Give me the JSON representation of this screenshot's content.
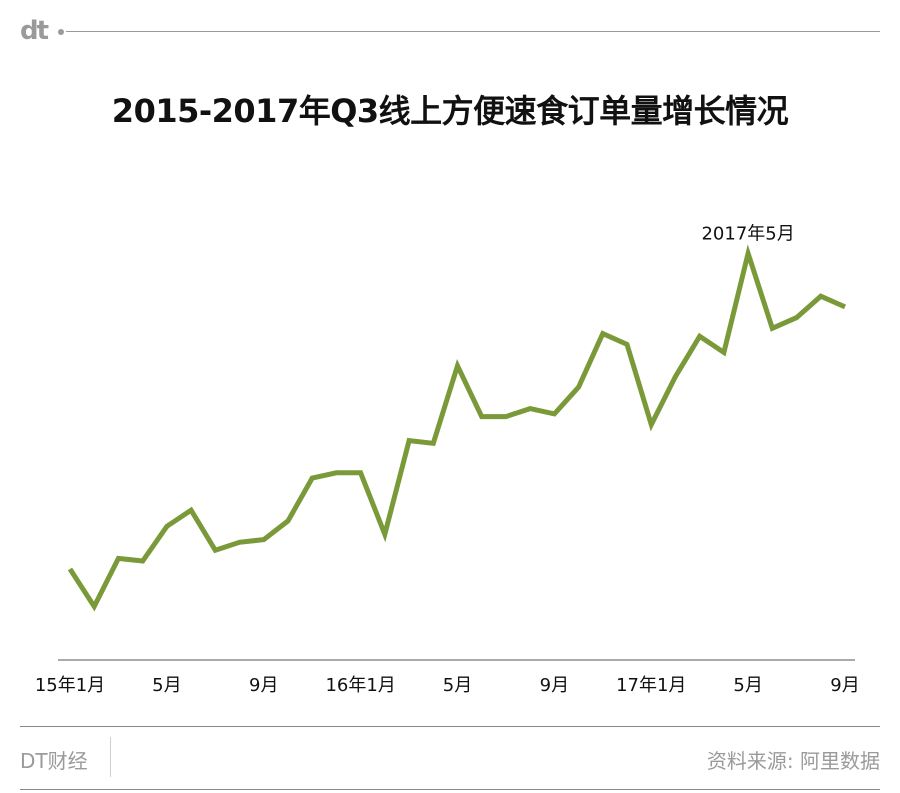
{
  "logo": {
    "text": "dt"
  },
  "title": "2015-2017年Q3线上方便速食订单量增长情况",
  "footer": {
    "brand": "DT财经",
    "source": "资料来源: 阿里数据"
  },
  "chart_data": {
    "type": "line",
    "title": "2015-2017年Q3线上方便速食订单量增长情况",
    "xlabel": "",
    "ylabel": "",
    "y_axis_shown": false,
    "grid": false,
    "ylim": [
      0,
      100
    ],
    "color": "#7a9a3a",
    "x": [
      "2015-01",
      "2015-02",
      "2015-03",
      "2015-04",
      "2015-05",
      "2015-06",
      "2015-07",
      "2015-08",
      "2015-09",
      "2015-10",
      "2015-11",
      "2015-12",
      "2016-01",
      "2016-02",
      "2016-03",
      "2016-04",
      "2016-05",
      "2016-06",
      "2016-07",
      "2016-08",
      "2016-09",
      "2016-10",
      "2016-11",
      "2016-12",
      "2017-01",
      "2017-02",
      "2017-03",
      "2017-04",
      "2017-05",
      "2017-06",
      "2017-07",
      "2017-08",
      "2017-09"
    ],
    "x_tick_labels": [
      "15年1月",
      "",
      "",
      "",
      "5月",
      "",
      "",
      "",
      "9月",
      "",
      "",
      "",
      "16年1月",
      "",
      "",
      "",
      "5月",
      "",
      "",
      "",
      "9月",
      "",
      "",
      "",
      "17年1月",
      "",
      "",
      "",
      "5月",
      "",
      "",
      "",
      "9月"
    ],
    "values": [
      17,
      10,
      19,
      18.5,
      25,
      28,
      20.5,
      22,
      22.5,
      26,
      34,
      35,
      35,
      23.5,
      41,
      40.5,
      55,
      45.5,
      45.5,
      47,
      46,
      51,
      61,
      59,
      44,
      53,
      60.5,
      57.5,
      76,
      62,
      64,
      68,
      66
    ],
    "annotations": [
      {
        "x": "2017-05",
        "text": "2017年5月"
      }
    ]
  }
}
